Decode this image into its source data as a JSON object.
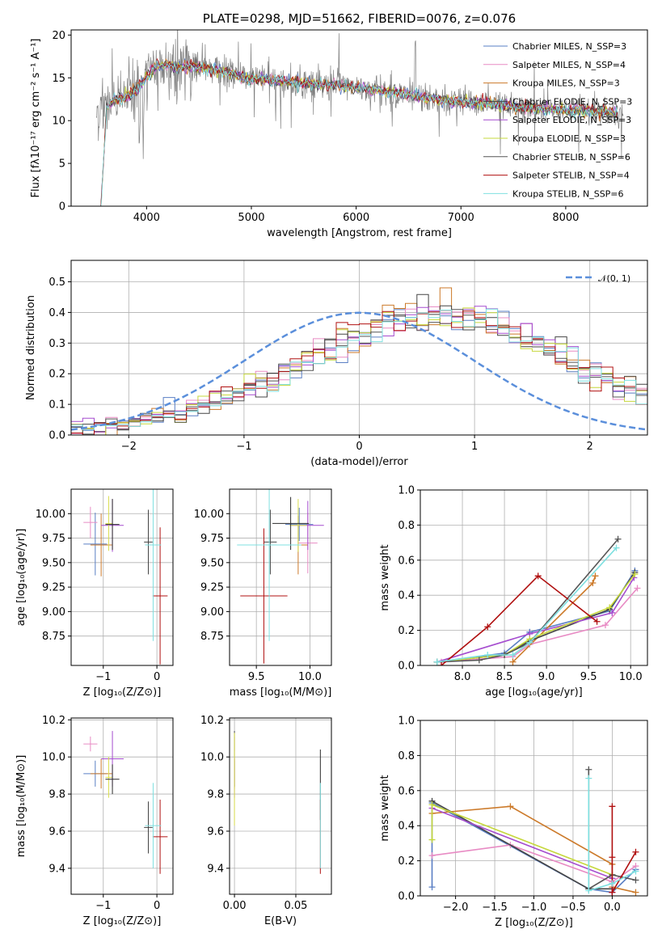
{
  "colors": [
    "#5a7fc4",
    "#e88bc4",
    "#cc7a2a",
    "#444444",
    "#a54ccf",
    "#d9de4e",
    "#2b2b2b",
    "#b01010",
    "#7fe0e0"
  ],
  "colors_line": [
    "#5a7fc4",
    "#e88bc4",
    "#cc7a2a",
    "#444444",
    "#a54ccf",
    "#c6d83c",
    "#555555",
    "#b01010",
    "#7fe0e0"
  ],
  "chart_data": [
    {
      "id": "spectrum",
      "type": "line",
      "title": "PLATE=0298, MJD=51662, FIBERID=0076, z=0.076",
      "xlabel": "wavelength [Angstrom, rest frame]",
      "ylabel": "Flux [fλ10⁻¹⁷ erg cm⁻² s⁻¹ A⁻¹]",
      "xlim": [
        3280,
        8780
      ],
      "ylim": [
        0,
        20.6
      ],
      "xticks": [
        "4000",
        "5000",
        "6000",
        "7000",
        "8000"
      ],
      "yticks": [
        "0",
        "5",
        "10",
        "15",
        "20"
      ],
      "legend_position": "top-right",
      "legend": [
        "Chabrier MILES, N_SSP=3",
        "Salpeter MILES, N_SSP=4",
        "Kroupa MILES, N_SSP=3",
        "Chabrier ELODIE, N_SSP=3",
        "Salpeter ELODIE, N_SSP=3",
        "Kroupa ELODIE, N_SSP=3",
        "Chabrier STELIB, N_SSP=6",
        "Salpeter STELIB, N_SSP=4",
        "Kroupa STELIB, N_SSP=6"
      ],
      "data_color": "#808080",
      "continuum": {
        "wavelength": [
          3520,
          3600,
          3700,
          3800,
          3900,
          4000,
          4100,
          4200,
          4300,
          4400,
          4500,
          4600,
          4700,
          4800,
          4900,
          5000,
          5200,
          5400,
          5600,
          5800,
          6000,
          6200,
          6400,
          6600,
          6800,
          7000,
          7200,
          7400,
          7600,
          7800,
          8000,
          8200,
          8400,
          8550
        ],
        "flux": [
          11.0,
          11.5,
          12.5,
          12.8,
          13.5,
          15.0,
          16.5,
          16.6,
          16.2,
          16.4,
          16.3,
          16.0,
          15.8,
          15.5,
          15.1,
          14.9,
          14.7,
          14.5,
          14.3,
          14.1,
          13.9,
          13.6,
          13.2,
          12.8,
          12.4,
          12.2,
          12.0,
          11.8,
          11.5,
          11.3,
          11.2,
          11.2,
          11.0,
          10.8
        ]
      }
    },
    {
      "id": "residuals",
      "type": "line",
      "xlabel": "(data-model)/error",
      "ylabel": "Normed distribution",
      "xlim": [
        -2.5,
        2.5
      ],
      "ylim": [
        0,
        0.57
      ],
      "xticks": [
        "−2",
        "−1",
        "0",
        "1",
        "2"
      ],
      "yticks": [
        "0.0",
        "0.1",
        "0.2",
        "0.3",
        "0.4",
        "0.5"
      ],
      "legend": [
        "𝒩(0, 1)"
      ],
      "legend_position": "top-right",
      "gaussian": {
        "mean": 0,
        "sigma": 1
      },
      "bin_width": 0.1,
      "bin_start": -2.5,
      "base_profile": [
        0.018,
        0.02,
        0.022,
        0.028,
        0.033,
        0.04,
        0.047,
        0.055,
        0.064,
        0.073,
        0.084,
        0.096,
        0.108,
        0.121,
        0.136,
        0.151,
        0.167,
        0.184,
        0.201,
        0.218,
        0.242,
        0.261,
        0.279,
        0.297,
        0.313,
        0.333,
        0.349,
        0.363,
        0.375,
        0.384,
        0.393,
        0.398,
        0.398,
        0.395,
        0.388,
        0.38,
        0.368,
        0.354,
        0.338,
        0.32,
        0.302,
        0.283,
        0.262,
        0.242,
        0.222,
        0.2,
        0.181,
        0.163,
        0.146,
        0.13,
        0.114,
        0.1,
        0.087,
        0.075,
        0.064,
        0.055,
        0.047,
        0.04,
        0.033,
        0.028
      ]
    },
    {
      "id": "age_vs_Z",
      "type": "scatter",
      "xlabel": "Z [log₁₀(Z/Z⊙)]",
      "ylabel": "age  [log₁₀(age/yr)]",
      "xlim": [
        -1.6,
        0.3
      ],
      "ylim": [
        8.45,
        10.25
      ],
      "xticks": [
        "−1",
        "0"
      ],
      "yticks": [
        "8.75",
        "9.00",
        "9.25",
        "9.50",
        "9.75",
        "10.00"
      ],
      "points": [
        {
          "x": -1.15,
          "y": 9.69,
          "xerr": 0.22,
          "yerr": 0.32
        },
        {
          "x": -1.24,
          "y": 9.91,
          "xerr": 0.13,
          "yerr": 0.16
        },
        {
          "x": -1.04,
          "y": 9.68,
          "xerr": 0.2,
          "yerr": 0.32
        },
        {
          "x": -0.16,
          "y": 9.71,
          "xerr": 0.08,
          "yerr": 0.33
        },
        {
          "x": -0.83,
          "y": 9.88,
          "xerr": 0.21,
          "yerr": 0.27
        },
        {
          "x": -0.9,
          "y": 9.9,
          "xerr": 0.06,
          "yerr": 0.28
        },
        {
          "x": -0.83,
          "y": 9.89,
          "xerr": 0.13,
          "yerr": 0.26
        },
        {
          "x": 0.06,
          "y": 9.16,
          "xerr": 0.14,
          "yerr": 0.7
        },
        {
          "x": -0.07,
          "y": 9.68,
          "xerr": 0.15,
          "yerr": 0.98
        }
      ]
    },
    {
      "id": "age_vs_mass",
      "type": "scatter",
      "xlabel": "mass [log₁₀(M/M⊙)]",
      "ylabel": "",
      "xlim": [
        9.25,
        10.2
      ],
      "ylim": [
        8.45,
        10.25
      ],
      "xticks": [
        "9.5",
        "10.0"
      ],
      "yticks": [
        "8.75",
        "9.00",
        "9.25",
        "9.50",
        "9.75",
        "10.00"
      ],
      "points": [
        {
          "x": 9.9,
          "y": 9.89,
          "xerr": 0.13,
          "yerr": 0.17
        },
        {
          "x": 9.98,
          "y": 9.7,
          "xerr": 0.09,
          "yerr": 0.31
        },
        {
          "x": 9.89,
          "y": 9.68,
          "xerr": 0.09,
          "yerr": 0.3
        },
        {
          "x": 9.63,
          "y": 9.71,
          "xerr": 0.06,
          "yerr": 0.33
        },
        {
          "x": 9.98,
          "y": 9.88,
          "xerr": 0.15,
          "yerr": 0.25
        },
        {
          "x": 9.89,
          "y": 9.88,
          "xerr": 0.08,
          "yerr": 0.27
        },
        {
          "x": 9.82,
          "y": 9.9,
          "xerr": 0.17,
          "yerr": 0.27
        },
        {
          "x": 9.57,
          "y": 9.16,
          "xerr": 0.22,
          "yerr": 0.69
        },
        {
          "x": 9.62,
          "y": 9.68,
          "xerr": 0.3,
          "yerr": 0.98
        }
      ]
    },
    {
      "id": "weight_vs_age",
      "type": "line",
      "xlabel": "age  [log₁₀(age/yr)]",
      "ylabel": "mass weight",
      "xlim": [
        7.5,
        10.2
      ],
      "ylim": [
        0,
        1.0
      ],
      "xticks": [
        "8.0",
        "8.5",
        "9.0",
        "9.5",
        "10.0"
      ],
      "yticks": [
        "0.0",
        "0.2",
        "0.4",
        "0.6",
        "0.8",
        "1.0"
      ],
      "series": [
        {
          "x": [
            7.7,
            8.5,
            8.8,
            9.75,
            10.05
          ],
          "y": [
            0.02,
            0.07,
            0.19,
            0.31,
            0.54
          ]
        },
        {
          "x": [
            7.75,
            8.6,
            8.8,
            9.7,
            10.08
          ],
          "y": [
            0.02,
            0.05,
            0.12,
            0.23,
            0.44
          ]
        },
        {
          "x": [
            8.6,
            9.55,
            9.58
          ],
          "y": [
            0.02,
            0.47,
            0.51
          ]
        },
        {
          "x": [
            7.7,
            8.5,
            8.8,
            9.75,
            10.05
          ],
          "y": [
            0.02,
            0.06,
            0.14,
            0.32,
            0.53
          ]
        },
        {
          "x": [
            7.7,
            8.8,
            9.78,
            10.04
          ],
          "y": [
            0.02,
            0.18,
            0.3,
            0.5
          ]
        },
        {
          "x": [
            7.7,
            8.5,
            8.8,
            9.75,
            10.05
          ],
          "y": [
            0.02,
            0.06,
            0.15,
            0.33,
            0.52
          ]
        },
        {
          "x": [
            7.7,
            8.2,
            8.5,
            8.8,
            9.85
          ],
          "y": [
            0.02,
            0.03,
            0.06,
            0.13,
            0.72
          ]
        },
        {
          "x": [
            7.75,
            8.3,
            8.9,
            9.6
          ],
          "y": [
            0.0,
            0.22,
            0.51,
            0.25
          ]
        },
        {
          "x": [
            7.7,
            8.3,
            8.6,
            8.8,
            9.83
          ],
          "y": [
            0.02,
            0.06,
            0.06,
            0.13,
            0.67
          ]
        }
      ]
    },
    {
      "id": "mass_vs_Z",
      "type": "scatter",
      "xlabel": "Z [log₁₀(Z/Z⊙)]",
      "ylabel": "mass [log₁₀(M/M⊙)]",
      "xlim": [
        -1.6,
        0.3
      ],
      "ylim": [
        9.26,
        10.21
      ],
      "xticks": [
        "−1",
        "0"
      ],
      "yticks": [
        "9.4",
        "9.6",
        "9.8",
        "10.0",
        "10.2"
      ],
      "points": [
        {
          "x": -1.15,
          "y": 9.91,
          "xerr": 0.22,
          "yerr": 0.07
        },
        {
          "x": -1.24,
          "y": 10.07,
          "xerr": 0.13,
          "yerr": 0.04
        },
        {
          "x": -1.04,
          "y": 9.91,
          "xerr": 0.2,
          "yerr": 0.08
        },
        {
          "x": -0.16,
          "y": 9.62,
          "xerr": 0.08,
          "yerr": 0.14
        },
        {
          "x": -0.83,
          "y": 9.99,
          "xerr": 0.21,
          "yerr": 0.15
        },
        {
          "x": -0.9,
          "y": 9.89,
          "xerr": 0.06,
          "yerr": 0.11
        },
        {
          "x": -0.83,
          "y": 9.88,
          "xerr": 0.13,
          "yerr": 0.08
        },
        {
          "x": 0.06,
          "y": 9.57,
          "xerr": 0.14,
          "yerr": 0.2
        },
        {
          "x": -0.07,
          "y": 9.63,
          "xerr": 0.15,
          "yerr": 0.23
        }
      ]
    },
    {
      "id": "mass_vs_ebv",
      "type": "scatter",
      "xlabel": "E(B-V)",
      "ylabel": "",
      "xlim": [
        -0.004,
        0.079
      ],
      "ylim": [
        9.26,
        10.21
      ],
      "xticks": [
        "0.00",
        "0.05"
      ],
      "yticks": [
        "9.4",
        "9.6",
        "9.8",
        "10.0",
        "10.2"
      ],
      "points": [
        {
          "x": 0.0,
          "y": 9.91,
          "xerr": 0,
          "yerr": 0.07
        },
        {
          "x": 0.0,
          "y": 10.07,
          "xerr": 0,
          "yerr": 0.04
        },
        {
          "x": 0.0,
          "y": 9.91,
          "xerr": 0,
          "yerr": 0.08
        },
        {
          "x": 0.0,
          "y": 9.99,
          "xerr": 0,
          "yerr": 0.15
        },
        {
          "x": 0.0,
          "y": 9.89,
          "xerr": 0,
          "yerr": 0.11
        },
        {
          "x": 0.0,
          "y": 9.88,
          "xerr": 0,
          "yerr": 0.25
        },
        {
          "x": 0.07,
          "y": 9.85,
          "xerr": 0,
          "yerr": 0.19
        },
        {
          "x": 0.07,
          "y": 9.57,
          "xerr": 0,
          "yerr": 0.2
        },
        {
          "x": 0.07,
          "y": 9.63,
          "xerr": 0,
          "yerr": 0.23
        }
      ]
    },
    {
      "id": "weight_vs_Z",
      "type": "line",
      "xlabel": "Z [log₁₀(Z/Z⊙)]",
      "ylabel": "mass weight",
      "xlim": [
        -2.45,
        0.45
      ],
      "ylim": [
        0,
        1.0
      ],
      "xticks": [
        "−2.0",
        "−1.5",
        "−1.0",
        "−0.5",
        "0.0"
      ],
      "yticks": [
        "0.0",
        "0.2",
        "0.4",
        "0.6",
        "0.8",
        "1.0"
      ],
      "series": [
        {
          "x": [
            -2.3,
            -2.3,
            -0.3,
            0.0,
            0.3
          ],
          "y": [
            0.05,
            0.53,
            0.04,
            0.02,
            0.15
          ]
        },
        {
          "x": [
            -2.3,
            -1.3,
            0.0,
            0.3
          ],
          "y": [
            0.23,
            0.29,
            0.08,
            0.17
          ]
        },
        {
          "x": [
            -2.3,
            -1.3,
            0.0,
            0.0,
            0.3
          ],
          "y": [
            0.47,
            0.51,
            0.18,
            0.05,
            0.02
          ]
        },
        {
          "x": [
            -2.3,
            -0.3,
            0.0
          ],
          "y": [
            0.54,
            0.04,
            0.04
          ]
        },
        {
          "x": [
            -2.3,
            0.0,
            0.0
          ],
          "y": [
            0.5,
            0.1,
            0.02
          ]
        },
        {
          "x": [
            -2.3,
            -2.3,
            0.0
          ],
          "y": [
            0.32,
            0.52,
            0.12
          ]
        },
        {
          "x": [
            -0.3,
            -0.3,
            0.0,
            0.3
          ],
          "y": [
            0.72,
            0.04,
            0.12,
            0.09
          ]
        },
        {
          "x": [
            0.0,
            0.0,
            0.0,
            0.3
          ],
          "y": [
            0.51,
            0.22,
            0.02,
            0.25
          ]
        },
        {
          "x": [
            -0.3,
            -0.3,
            0.0,
            0.3
          ],
          "y": [
            0.67,
            0.03,
            0.07,
            0.14
          ]
        }
      ]
    }
  ]
}
